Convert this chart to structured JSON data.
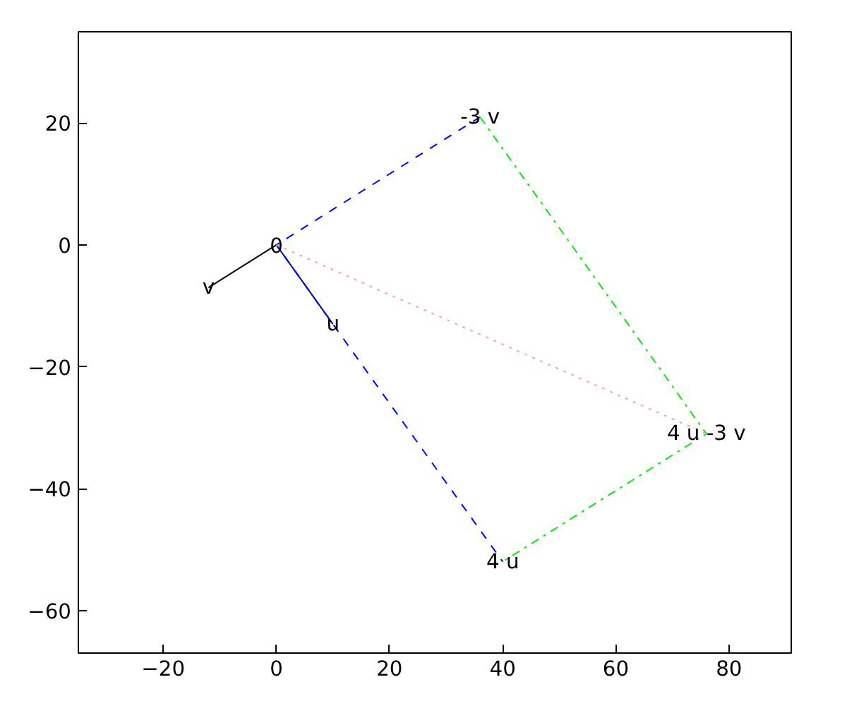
{
  "chart_data": {
    "type": "line",
    "xlim": [
      -35,
      91
    ],
    "ylim": [
      -67,
      35
    ],
    "xticks": [
      -20,
      0,
      20,
      40,
      60,
      80
    ],
    "yticks": [
      -60,
      -40,
      -20,
      0,
      20
    ],
    "grid": false,
    "marker": "none",
    "series": [
      {
        "color": "#000080",
        "x": [
          0,
          10
        ],
        "values": [
          0,
          -13
        ],
        "line_style": "solid"
      },
      {
        "color": "#000000",
        "x": [
          0,
          -12
        ],
        "values": [
          0,
          -7
        ],
        "line_style": "solid"
      },
      {
        "color": "#0000ff",
        "x": [
          36,
          0,
          40
        ],
        "values": [
          21,
          0,
          -52
        ],
        "line_style": "dashed"
      },
      {
        "color": "#00ee00",
        "x": [
          36,
          76,
          40
        ],
        "values": [
          21,
          -31,
          -52
        ],
        "line_style": "dashdot"
      },
      {
        "color": "#ffa0a0",
        "x": [
          0,
          76
        ],
        "values": [
          0,
          -31
        ],
        "line_style": "dotted"
      }
    ],
    "annotations": [
      {
        "text": "0",
        "x": 0,
        "y": 0
      },
      {
        "text": "u",
        "x": 10,
        "y": -13
      },
      {
        "text": "v",
        "x": -12,
        "y": -7
      },
      {
        "text": "-3 v",
        "x": 36,
        "y": 21
      },
      {
        "text": "4 u",
        "x": 40,
        "y": -52
      },
      {
        "text": "4 u -3 v",
        "x": 76,
        "y": -31
      }
    ]
  }
}
